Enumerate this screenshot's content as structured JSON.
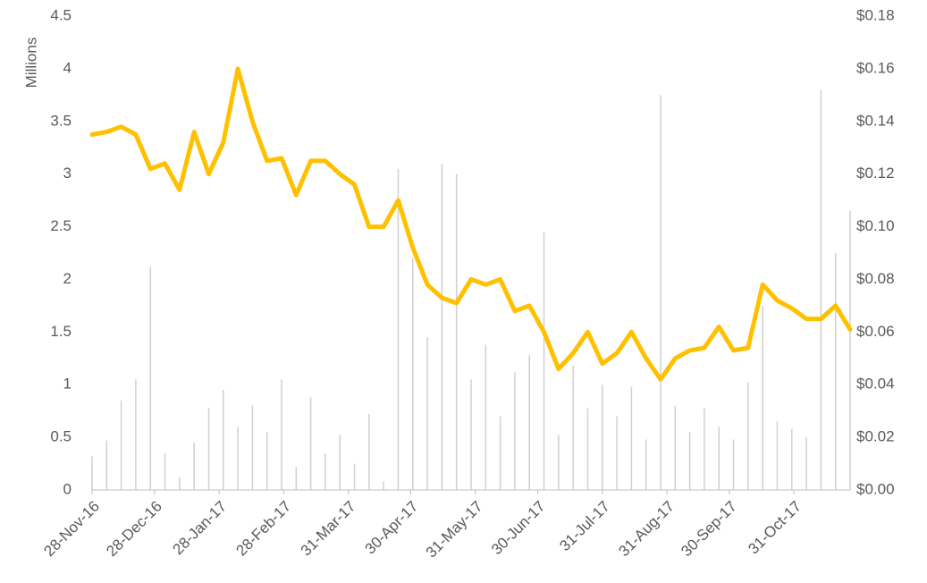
{
  "chart_data": {
    "type": "combo",
    "y_label": "Millions",
    "x": [
      "2016-11-28",
      "2016-12-05",
      "2016-12-12",
      "2016-12-19",
      "2016-12-26",
      "2017-01-02",
      "2017-01-09",
      "2017-01-16",
      "2017-01-23",
      "2017-01-30",
      "2017-02-06",
      "2017-02-13",
      "2017-02-20",
      "2017-02-27",
      "2017-03-06",
      "2017-03-13",
      "2017-03-20",
      "2017-03-27",
      "2017-04-03",
      "2017-04-10",
      "2017-04-17",
      "2017-04-24",
      "2017-05-01",
      "2017-05-08",
      "2017-05-15",
      "2017-05-22",
      "2017-05-29",
      "2017-06-05",
      "2017-06-12",
      "2017-06-19",
      "2017-06-26",
      "2017-07-03",
      "2017-07-10",
      "2017-07-17",
      "2017-07-24",
      "2017-07-31",
      "2017-08-07",
      "2017-08-14",
      "2017-08-21",
      "2017-08-28",
      "2017-09-04",
      "2017-09-11",
      "2017-09-18",
      "2017-09-25",
      "2017-10-02",
      "2017-10-09",
      "2017-10-16",
      "2017-10-23",
      "2017-10-30",
      "2017-11-06",
      "2017-11-13",
      "2017-11-20",
      "2017-11-27"
    ],
    "series": [
      {
        "type": "bar",
        "axis": "y",
        "color": "#d0d0d0",
        "values": [
          0.32,
          0.47,
          0.85,
          1.05,
          2.12,
          0.35,
          0.12,
          0.45,
          0.78,
          0.95,
          0.6,
          0.8,
          0.55,
          1.05,
          0.22,
          0.88,
          0.35,
          0.52,
          0.25,
          0.72,
          0.08,
          3.05,
          2.2,
          1.45,
          3.1,
          3.0,
          1.05,
          1.38,
          0.7,
          1.12,
          1.28,
          2.45,
          0.52,
          1.18,
          0.78,
          1.0,
          0.7,
          0.98,
          0.48,
          3.75,
          0.8,
          0.55,
          0.78,
          0.6,
          0.48,
          1.02,
          1.75,
          0.65,
          0.58,
          0.5,
          3.8,
          2.25,
          2.65
        ]
      },
      {
        "type": "line",
        "axis": "y2",
        "color": "#ffc000",
        "values": [
          0.135,
          0.136,
          0.138,
          0.135,
          0.122,
          0.124,
          0.114,
          0.136,
          0.12,
          0.132,
          0.16,
          0.14,
          0.125,
          0.126,
          0.112,
          0.125,
          0.125,
          0.12,
          0.116,
          0.1,
          0.1,
          0.11,
          0.092,
          0.078,
          0.073,
          0.071,
          0.08,
          0.078,
          0.08,
          0.068,
          0.07,
          0.06,
          0.046,
          0.052,
          0.06,
          0.048,
          0.052,
          0.06,
          0.05,
          0.042,
          0.05,
          0.053,
          0.054,
          0.062,
          0.053,
          0.054,
          0.078,
          0.072,
          0.069,
          0.065,
          0.065,
          0.07,
          0.061
        ]
      }
    ],
    "xlim": [
      "2016-11-28",
      "2017-11-27"
    ],
    "xticks": [
      {
        "value": "2016-11-28",
        "label": "28-Nov-16"
      },
      {
        "value": "2016-12-28",
        "label": "28-Dec-16"
      },
      {
        "value": "2017-01-28",
        "label": "28-Jan-17"
      },
      {
        "value": "2017-02-28",
        "label": "28-Feb-17"
      },
      {
        "value": "2017-03-31",
        "label": "31-Mar-17"
      },
      {
        "value": "2017-04-30",
        "label": "30-Apr-17"
      },
      {
        "value": "2017-05-31",
        "label": "31-May-17"
      },
      {
        "value": "2017-06-30",
        "label": "30-Jun-17"
      },
      {
        "value": "2017-07-31",
        "label": "31-Jul-17"
      },
      {
        "value": "2017-08-31",
        "label": "31-Aug-17"
      },
      {
        "value": "2017-09-30",
        "label": "30-Sep-17"
      },
      {
        "value": "2017-10-31",
        "label": "31-Oct-17"
      }
    ],
    "ylim": [
      0,
      4.5
    ],
    "yticks": [
      0,
      0.5,
      1,
      1.5,
      2,
      2.5,
      3,
      3.5,
      4,
      4.5
    ],
    "y2lim": [
      0,
      0.18
    ],
    "y2ticks": [
      {
        "value": 0,
        "label": "$0.00"
      },
      {
        "value": 0.02,
        "label": "$0.02"
      },
      {
        "value": 0.04,
        "label": "$0.04"
      },
      {
        "value": 0.06,
        "label": "$0.06"
      },
      {
        "value": 0.08,
        "label": "$0.08"
      },
      {
        "value": 0.1,
        "label": "$0.10"
      },
      {
        "value": 0.12,
        "label": "$0.12"
      },
      {
        "value": 0.14,
        "label": "$0.14"
      },
      {
        "value": 0.16,
        "label": "$0.16"
      },
      {
        "value": 0.18,
        "label": "$0.18"
      }
    ]
  }
}
